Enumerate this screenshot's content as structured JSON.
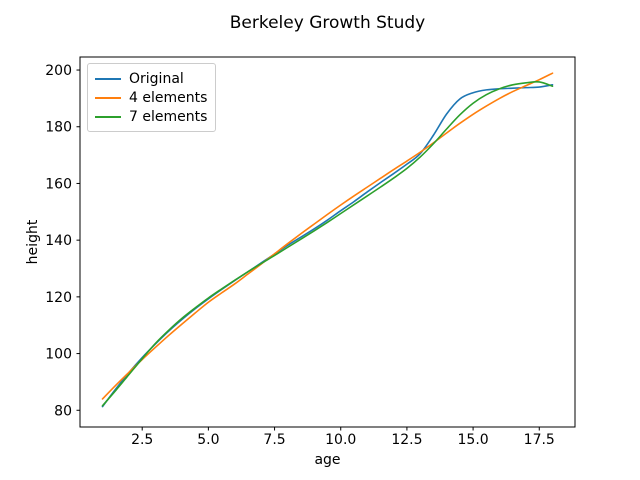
{
  "chart_data": {
    "type": "line",
    "title": "Berkeley Growth Study",
    "xlabel": "age",
    "ylabel": "height",
    "xlim": [
      0.15,
      18.85
    ],
    "ylim": [
      74.1,
      204.6
    ],
    "grid": false,
    "x_ticks": [
      2.5,
      5.0,
      7.5,
      10.0,
      12.5,
      15.0,
      17.5
    ],
    "x_tick_labels": [
      "2.5",
      "5.0",
      "7.5",
      "10.0",
      "12.5",
      "15.0",
      "17.5"
    ],
    "y_ticks": [
      80,
      100,
      120,
      140,
      160,
      180,
      200
    ],
    "y_tick_labels": [
      "80",
      "100",
      "120",
      "140",
      "160",
      "180",
      "200"
    ],
    "legend_position": "upper left",
    "x": [
      1,
      1.5,
      2,
      2.5,
      3,
      3.5,
      4,
      4.5,
      5,
      5.5,
      6,
      6.5,
      7,
      7.5,
      8,
      8.5,
      9,
      9.5,
      10,
      10.5,
      11,
      11.5,
      12,
      12.5,
      13,
      13.5,
      14,
      14.5,
      15,
      15.5,
      16,
      16.5,
      17,
      17.5,
      18
    ],
    "series": [
      {
        "name": "Original",
        "color": "#1f77b4",
        "values": [
          81.3,
          87.5,
          93.3,
          98.6,
          103.4,
          107.9,
          112.0,
          115.8,
          119.3,
          122.6,
          125.8,
          128.9,
          132.0,
          135.1,
          138.2,
          141.1,
          144.0,
          147.1,
          150.4,
          153.6,
          157.0,
          160.3,
          163.5,
          166.8,
          170.5,
          177.0,
          184.5,
          189.8,
          192.0,
          193.0,
          193.4,
          193.6,
          193.8,
          194.0,
          194.8
        ]
      },
      {
        "name": "4 elements",
        "color": "#ff7f0e",
        "values": [
          84.0,
          88.8,
          93.4,
          97.9,
          102.2,
          106.4,
          110.4,
          114.3,
          118.1,
          121.4,
          124.6,
          128.1,
          131.6,
          135.2,
          138.8,
          142.3,
          145.7,
          149.1,
          152.4,
          155.6,
          158.7,
          161.8,
          164.9,
          167.9,
          171.0,
          174.3,
          177.8,
          181.2,
          184.4,
          187.3,
          190.0,
          192.4,
          194.5,
          196.6,
          198.9
        ]
      },
      {
        "name": "7 elements",
        "color": "#2ca02c",
        "values": [
          81.6,
          87.0,
          92.6,
          98.2,
          103.6,
          108.2,
          112.4,
          116.1,
          119.6,
          122.8,
          125.9,
          128.9,
          131.8,
          134.6,
          137.5,
          140.4,
          143.3,
          146.3,
          149.4,
          152.5,
          155.6,
          158.7,
          161.9,
          165.3,
          169.3,
          174.0,
          179.2,
          184.2,
          188.3,
          191.3,
          193.4,
          194.8,
          195.5,
          195.8,
          194.3
        ]
      }
    ]
  }
}
